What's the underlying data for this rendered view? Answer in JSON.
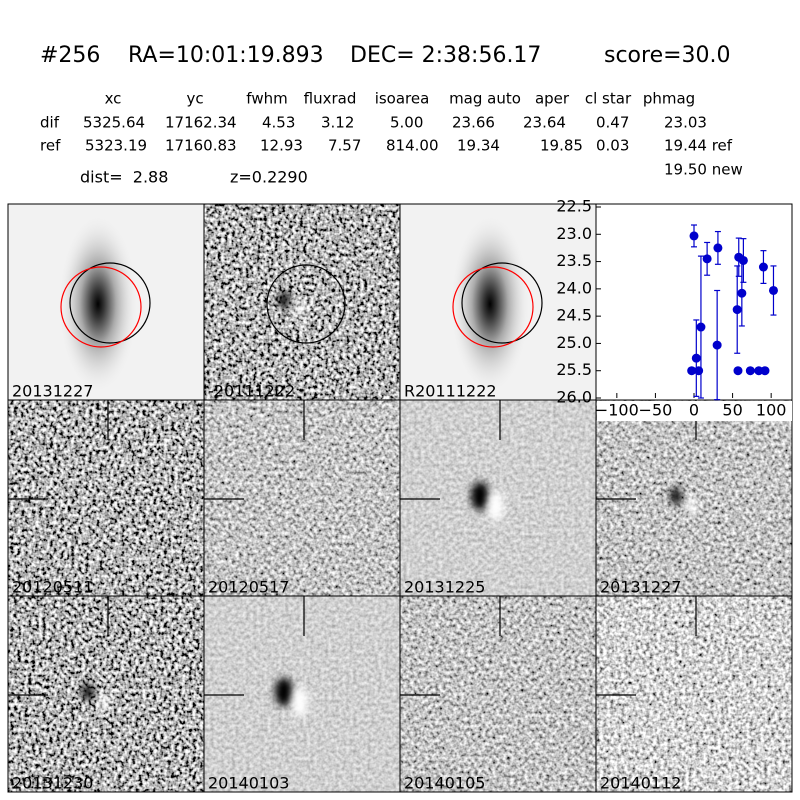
{
  "header": {
    "id": "#256",
    "ra": "RA=10:01:19.893",
    "dec": "DEC= 2:38:56.17",
    "score": "score=30.0"
  },
  "table": {
    "columns": [
      "xc",
      "yc",
      "fwhm",
      "fluxrad",
      "isoarea",
      "mag auto",
      "aper",
      "cl star",
      "phmag"
    ],
    "rows": [
      {
        "name": "dif",
        "cells": [
          "5325.64",
          "17162.34",
          "4.53",
          "3.12",
          "5.00",
          "23.66",
          "23.64",
          "0.47",
          "23.03"
        ]
      },
      {
        "name": "ref",
        "cells": [
          "5323.19",
          "17160.83",
          "12.93",
          "7.57",
          "814.00",
          "19.34",
          "19.85",
          "0.03",
          "19.44 ref"
        ]
      }
    ],
    "extra": "19.50 new"
  },
  "dist": "dist=  2.88",
  "z": "z=0.2290",
  "stamps": [
    "20131227",
    "-20111222",
    "R20111222",
    "20120511",
    "20120517",
    "20131225",
    "20131227",
    "20131230",
    "20140103",
    "20140105",
    "20140112"
  ],
  "highlight_color": "#ff0000",
  "chart_data": {
    "type": "scatter",
    "color": "#0000cc",
    "x": [
      0,
      -3,
      3,
      6,
      9,
      17,
      30,
      31,
      56,
      57,
      58,
      62,
      64,
      73,
      84,
      90,
      92,
      103
    ],
    "values": [
      23.03,
      25.5,
      25.27,
      25.5,
      24.7,
      23.45,
      25.03,
      23.25,
      24.38,
      25.5,
      23.42,
      24.08,
      23.48,
      25.5,
      25.5,
      23.6,
      25.5,
      24.03
    ],
    "errors": [
      0.2,
      0.05,
      0.7,
      0.05,
      1.3,
      0.3,
      1.0,
      0.3,
      0.8,
      0.05,
      0.35,
      0.6,
      0.4,
      0.05,
      0.05,
      0.3,
      0.05,
      0.45
    ],
    "xlim": [
      -127,
      127
    ],
    "ylim": [
      22.5,
      26
    ],
    "y_inverted": true,
    "xticks": [
      {
        "value": -100,
        "label": "−100"
      },
      {
        "value": -50,
        "label": "−50"
      },
      0,
      50,
      100
    ],
    "yticks": [
      22.5,
      {
        "value": 23,
        "label": "23.0"
      },
      23.5,
      {
        "value": 24,
        "label": "24.0"
      },
      24.5,
      {
        "value": 25,
        "label": "25.0"
      },
      25.5,
      {
        "value": 26,
        "label": "26.0"
      }
    ]
  }
}
